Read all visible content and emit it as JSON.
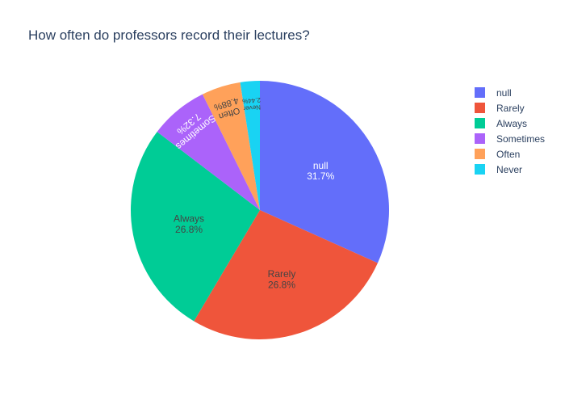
{
  "chart_data": {
    "type": "pie",
    "title": "How often do professors record their lectures?",
    "slices": [
      {
        "label": "null",
        "percent": 31.7,
        "value": 31.7,
        "color": "#636efa"
      },
      {
        "label": "Rarely",
        "percent": 26.8,
        "value": 26.8,
        "color": "#EF553B"
      },
      {
        "label": "Always",
        "percent": 26.8,
        "value": 26.8,
        "color": "#00cc96"
      },
      {
        "label": "Sometimes",
        "percent": 7.32,
        "value": 7.32,
        "color": "#ab63fa"
      },
      {
        "label": "Often",
        "percent": 4.88,
        "value": 4.88,
        "color": "#FFA15A"
      },
      {
        "label": "Never",
        "percent": 2.44,
        "value": 2.44,
        "color": "#19d3f3"
      }
    ],
    "slice_labels": [
      "null\n31.7%",
      "Rarely\n26.8%",
      "Always\n26.8%",
      "Sometimes\n7.32%",
      "Often\n4.88%",
      "Never\n2.44%"
    ],
    "legend_position": "right",
    "legend": [
      "null",
      "Rarely",
      "Always",
      "Sometimes",
      "Often",
      "Never"
    ]
  }
}
